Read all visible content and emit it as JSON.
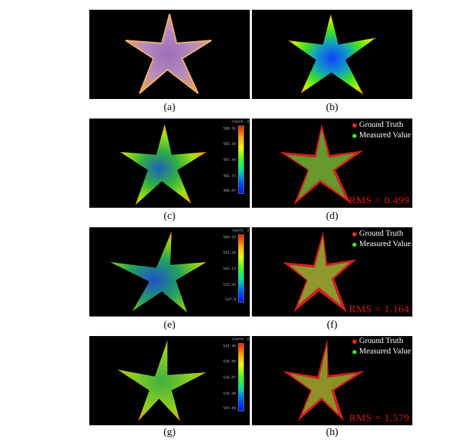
{
  "colors": {
    "ground_truth": "#ff2a2a",
    "measured": "#44dd33",
    "rms": "#dd1111"
  },
  "captions": {
    "a": "(a)",
    "b": "(b)",
    "c": "(c)",
    "d": "(d)",
    "e": "(e)",
    "f": "(f)",
    "g": "(g)",
    "h": "(h)"
  },
  "legend": {
    "ground_truth": "Ground Truth",
    "measured": "Measured Value"
  },
  "rms": {
    "d": "RMS = 0.499",
    "f": "RMS = 1.164",
    "h": "RMS = 1.579"
  },
  "colorbars": {
    "c": {
      "title": "Coord. Z",
      "ticks": [
        "508.91",
        "503.18",
        "497.44",
        "491.73",
        "486.07"
      ]
    },
    "e": {
      "title": "Coord. Z",
      "ticks": [
        "560.53",
        "551.26",
        "542.13",
        "533.02",
        "527.8"
      ]
    },
    "g": {
      "title": "Coord. Z",
      "ticks": [
        "541.40",
        "535.60",
        "529.87",
        "516.90",
        "507.60"
      ]
    }
  }
}
